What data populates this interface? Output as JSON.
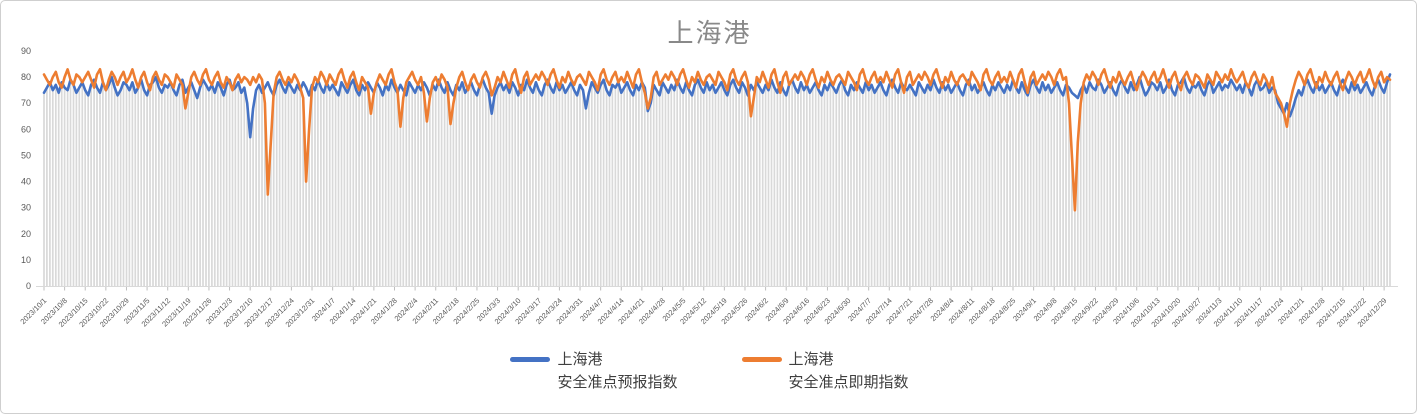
{
  "window": {
    "background": "#ffffff",
    "border_color": "#cfcfcf"
  },
  "chart": {
    "title": "上海港",
    "title_color": "#898989"
  },
  "legend": {
    "position": "bottom-center",
    "items": [
      {
        "name_line1": "上海港",
        "name_line2": "安全准点预报指数",
        "color": "#4472C4"
      },
      {
        "name_line1": "上海港",
        "name_line2": "安全准点即期指数",
        "color": "#ED7D31"
      }
    ]
  },
  "chart_data": {
    "type": "line",
    "title": "上海港",
    "xlabel": "",
    "ylabel": "",
    "ylim": [
      0,
      90
    ],
    "y_ticks": [
      0,
      10,
      20,
      30,
      40,
      50,
      60,
      70,
      80,
      90
    ],
    "grid": "none",
    "legend_position": "bottom",
    "x_frequency": "daily",
    "x_start": "2023/10/1",
    "x_end": "2024/12/31",
    "x_tick_interval_days": 7,
    "x_tick_labels": [
      "2023/10/1",
      "2023/10/8",
      "2023/10/15",
      "2023/10/22",
      "2023/10/29",
      "2023/11/5",
      "2023/11/12",
      "2023/11/19",
      "2023/11/26",
      "2023/12/3",
      "2023/12/10",
      "2023/12/17",
      "2023/12/24",
      "2023/12/31",
      "2024/1/7",
      "2024/1/14",
      "2024/1/21",
      "2024/1/28",
      "2024/2/4",
      "2024/2/11",
      "2024/2/18",
      "2024/2/25",
      "2024/3/3",
      "2024/3/10",
      "2024/3/17",
      "2024/3/24",
      "2024/3/31",
      "2024/4/7",
      "2024/4/14",
      "2024/4/21",
      "2024/4/28",
      "2024/5/5",
      "2024/5/12",
      "2024/5/19",
      "2024/5/26",
      "2024/6/2",
      "2024/6/9",
      "2024/6/16",
      "2024/6/23",
      "2024/6/30",
      "2024/7/7",
      "2024/7/14",
      "2024/7/21",
      "2024/7/28",
      "2024/8/4",
      "2024/8/11",
      "2024/8/18",
      "2024/8/25",
      "2024/9/1",
      "2024/9/8",
      "2024/9/15",
      "2024/9/22",
      "2024/9/29",
      "2024/10/6",
      "2024/10/13",
      "2024/10/20",
      "2024/10/27",
      "2024/11/3",
      "2024/11/10",
      "2024/11/17",
      "2024/11/24",
      "2024/12/1",
      "2024/12/8",
      "2024/12/15",
      "2024/12/22",
      "2024/12/29"
    ],
    "drop_lines": true,
    "drop_lines_color": "#d9d9d9",
    "axis_line_color": "#d9d9d9",
    "notable_events": [
      {
        "date": "2023/12/10",
        "series": "上海港安全准点预报指数",
        "value": 57
      },
      {
        "date": "2023/12/16",
        "series": "上海港安全准点即期指数",
        "value": 35
      },
      {
        "date": "2023/12/29",
        "series": "上海港安全准点即期指数",
        "value": 40
      },
      {
        "date": "2024/1/30",
        "series": "上海港安全准点即期指数",
        "value": 61
      },
      {
        "date": "2024/9/15",
        "series": "上海港安全准点即期指数",
        "value": 29
      },
      {
        "date": "2024/11/25",
        "series": "上海港安全准点即期指数",
        "value": 61
      }
    ],
    "series": [
      {
        "name": "上海港安全准点预报指数",
        "color": "#4472C4",
        "values": [
          74,
          76,
          78,
          75,
          77,
          74,
          78,
          76,
          75,
          79,
          77,
          74,
          76,
          78,
          75,
          73,
          77,
          79,
          76,
          74,
          78,
          75,
          77,
          80,
          76,
          73,
          75,
          78,
          77,
          75,
          78,
          74,
          76,
          79,
          75,
          73,
          77,
          78,
          80,
          76,
          74,
          77,
          76,
          78,
          75,
          73,
          77,
          79,
          74,
          76,
          78,
          75,
          72,
          76,
          79,
          77,
          75,
          77,
          74,
          78,
          76,
          73,
          77,
          79,
          75,
          76,
          78,
          74,
          76,
          70,
          57,
          68,
          75,
          77,
          74,
          76,
          78,
          75,
          73,
          77,
          79,
          76,
          74,
          78,
          76,
          74,
          77,
          75,
          78,
          76,
          73,
          77,
          75,
          79,
          76,
          74,
          78,
          75,
          77,
          75,
          73,
          78,
          76,
          74,
          77,
          79,
          75,
          73,
          77,
          75,
          78,
          76,
          74,
          78,
          76,
          73,
          77,
          75,
          79,
          76,
          74,
          77,
          75,
          73,
          78,
          76,
          74,
          77,
          75,
          78,
          76,
          73,
          77,
          75,
          79,
          76,
          74,
          78,
          75,
          73,
          77,
          75,
          78,
          74,
          76,
          78,
          75,
          73,
          77,
          79,
          76,
          74,
          66,
          73,
          76,
          78,
          75,
          77,
          74,
          78,
          76,
          73,
          77,
          75,
          79,
          76,
          74,
          78,
          75,
          73,
          77,
          79,
          76,
          74,
          78,
          75,
          77,
          74,
          76,
          78,
          75,
          73,
          77,
          75,
          68,
          74,
          78,
          76,
          74,
          77,
          79,
          75,
          73,
          77,
          76,
          78,
          74,
          76,
          78,
          75,
          73,
          77,
          75,
          78,
          76,
          67,
          70,
          77,
          75,
          73,
          78,
          76,
          74,
          77,
          75,
          79,
          76,
          74,
          78,
          75,
          73,
          77,
          79,
          76,
          74,
          78,
          75,
          77,
          74,
          76,
          78,
          75,
          73,
          77,
          79,
          76,
          74,
          78,
          76,
          73,
          77,
          75,
          78,
          76,
          74,
          77,
          75,
          79,
          76,
          74,
          78,
          75,
          73,
          77,
          79,
          76,
          74,
          78,
          75,
          77,
          74,
          76,
          78,
          75,
          73,
          77,
          75,
          78,
          76,
          74,
          77,
          79,
          75,
          73,
          77,
          75,
          78,
          76,
          74,
          78,
          75,
          77,
          74,
          76,
          78,
          75,
          73,
          77,
          79,
          76,
          74,
          78,
          76,
          75,
          77,
          75,
          73,
          78,
          76,
          74,
          77,
          75,
          79,
          76,
          74,
          78,
          75,
          77,
          74,
          76,
          78,
          75,
          73,
          77,
          79,
          75,
          77,
          74,
          76,
          78,
          75,
          73,
          77,
          75,
          78,
          76,
          74,
          77,
          75,
          79,
          76,
          74,
          78,
          75,
          73,
          77,
          79,
          76,
          74,
          78,
          75,
          77,
          74,
          76,
          78,
          75,
          73,
          77,
          76,
          74,
          73,
          72,
          75,
          77,
          74,
          78,
          76,
          75,
          79,
          77,
          74,
          76,
          78,
          75,
          73,
          77,
          79,
          76,
          74,
          78,
          75,
          77,
          80,
          76,
          73,
          75,
          78,
          77,
          75,
          78,
          74,
          76,
          79,
          75,
          73,
          77,
          78,
          80,
          76,
          74,
          77,
          76,
          78,
          75,
          73,
          77,
          79,
          74,
          76,
          78,
          75,
          77,
          76,
          79,
          77,
          75,
          77,
          74,
          78,
          76,
          73,
          77,
          79,
          75,
          76,
          78,
          74,
          76,
          75,
          70,
          68,
          66,
          70,
          65,
          68,
          72,
          75,
          73,
          77,
          79,
          76,
          74,
          78,
          75,
          77,
          74,
          76,
          78,
          75,
          73,
          77,
          79,
          76,
          74,
          78,
          75,
          77,
          74,
          76,
          78,
          75,
          73,
          77,
          79,
          76,
          74,
          78,
          81
        ]
      },
      {
        "name": "上海港安全准点即期指数",
        "color": "#ED7D31",
        "values": [
          81,
          79,
          77,
          80,
          82,
          78,
          76,
          80,
          83,
          79,
          77,
          81,
          80,
          78,
          80,
          82,
          79,
          76,
          81,
          83,
          78,
          75,
          79,
          82,
          80,
          77,
          80,
          82,
          78,
          80,
          83,
          79,
          76,
          80,
          82,
          78,
          75,
          80,
          82,
          79,
          77,
          81,
          80,
          78,
          76,
          81,
          79,
          77,
          68,
          74,
          80,
          82,
          79,
          77,
          81,
          83,
          79,
          77,
          80,
          82,
          78,
          76,
          80,
          78,
          75,
          79,
          81,
          78,
          80,
          79,
          77,
          80,
          78,
          81,
          79,
          70,
          35,
          55,
          74,
          80,
          82,
          79,
          77,
          80,
          78,
          81,
          79,
          76,
          72,
          40,
          60,
          76,
          80,
          78,
          82,
          80,
          77,
          81,
          79,
          77,
          81,
          83,
          79,
          76,
          80,
          82,
          78,
          75,
          80,
          78,
          76,
          66,
          74,
          78,
          81,
          79,
          77,
          81,
          83,
          78,
          75,
          61,
          72,
          78,
          80,
          82,
          79,
          77,
          80,
          74,
          63,
          72,
          78,
          80,
          77,
          81,
          79,
          76,
          62,
          70,
          76,
          80,
          82,
          78,
          75,
          79,
          81,
          78,
          76,
          80,
          82,
          79,
          73,
          76,
          80,
          78,
          82,
          79,
          76,
          81,
          83,
          78,
          74,
          80,
          82,
          77,
          79,
          81,
          79,
          82,
          80,
          77,
          81,
          83,
          79,
          76,
          80,
          78,
          82,
          79,
          77,
          80,
          81,
          79,
          77,
          82,
          80,
          78,
          75,
          81,
          83,
          79,
          77,
          80,
          82,
          78,
          80,
          78,
          82,
          79,
          76,
          81,
          83,
          78,
          74,
          68,
          72,
          80,
          82,
          77,
          79,
          81,
          79,
          82,
          80,
          77,
          81,
          83,
          79,
          76,
          80,
          78,
          82,
          79,
          77,
          80,
          81,
          79,
          77,
          82,
          80,
          78,
          75,
          81,
          83,
          79,
          77,
          80,
          82,
          78,
          65,
          72,
          80,
          78,
          82,
          79,
          76,
          81,
          83,
          78,
          74,
          80,
          82,
          77,
          79,
          81,
          79,
          82,
          80,
          77,
          81,
          83,
          79,
          76,
          80,
          78,
          82,
          79,
          77,
          80,
          81,
          79,
          77,
          82,
          80,
          78,
          75,
          81,
          83,
          79,
          77,
          80,
          82,
          78,
          80,
          78,
          82,
          79,
          76,
          81,
          83,
          78,
          74,
          80,
          82,
          77,
          79,
          81,
          79,
          82,
          80,
          77,
          81,
          83,
          79,
          76,
          80,
          78,
          82,
          79,
          77,
          80,
          81,
          79,
          77,
          82,
          80,
          78,
          75,
          81,
          83,
          79,
          77,
          80,
          82,
          78,
          80,
          78,
          82,
          79,
          76,
          81,
          83,
          78,
          74,
          80,
          82,
          77,
          79,
          81,
          79,
          82,
          80,
          77,
          81,
          83,
          79,
          80,
          70,
          50,
          29,
          55,
          70,
          78,
          81,
          79,
          82,
          80,
          77,
          81,
          83,
          79,
          76,
          80,
          78,
          82,
          79,
          77,
          80,
          82,
          78,
          75,
          79,
          82,
          80,
          77,
          80,
          82,
          78,
          80,
          83,
          79,
          76,
          80,
          82,
          78,
          75,
          80,
          82,
          79,
          77,
          81,
          80,
          78,
          76,
          81,
          79,
          77,
          82,
          80,
          78,
          81,
          79,
          83,
          80,
          78,
          80,
          82,
          78,
          76,
          80,
          82,
          79,
          77,
          81,
          79,
          76,
          80,
          74,
          72,
          70,
          66,
          61,
          70,
          75,
          79,
          82,
          80,
          77,
          81,
          83,
          79,
          76,
          80,
          78,
          82,
          79,
          77,
          80,
          82,
          78,
          75,
          79,
          82,
          80,
          77,
          80,
          82,
          78,
          80,
          83,
          79,
          76,
          80,
          82,
          78,
          80,
          79
        ]
      }
    ]
  }
}
